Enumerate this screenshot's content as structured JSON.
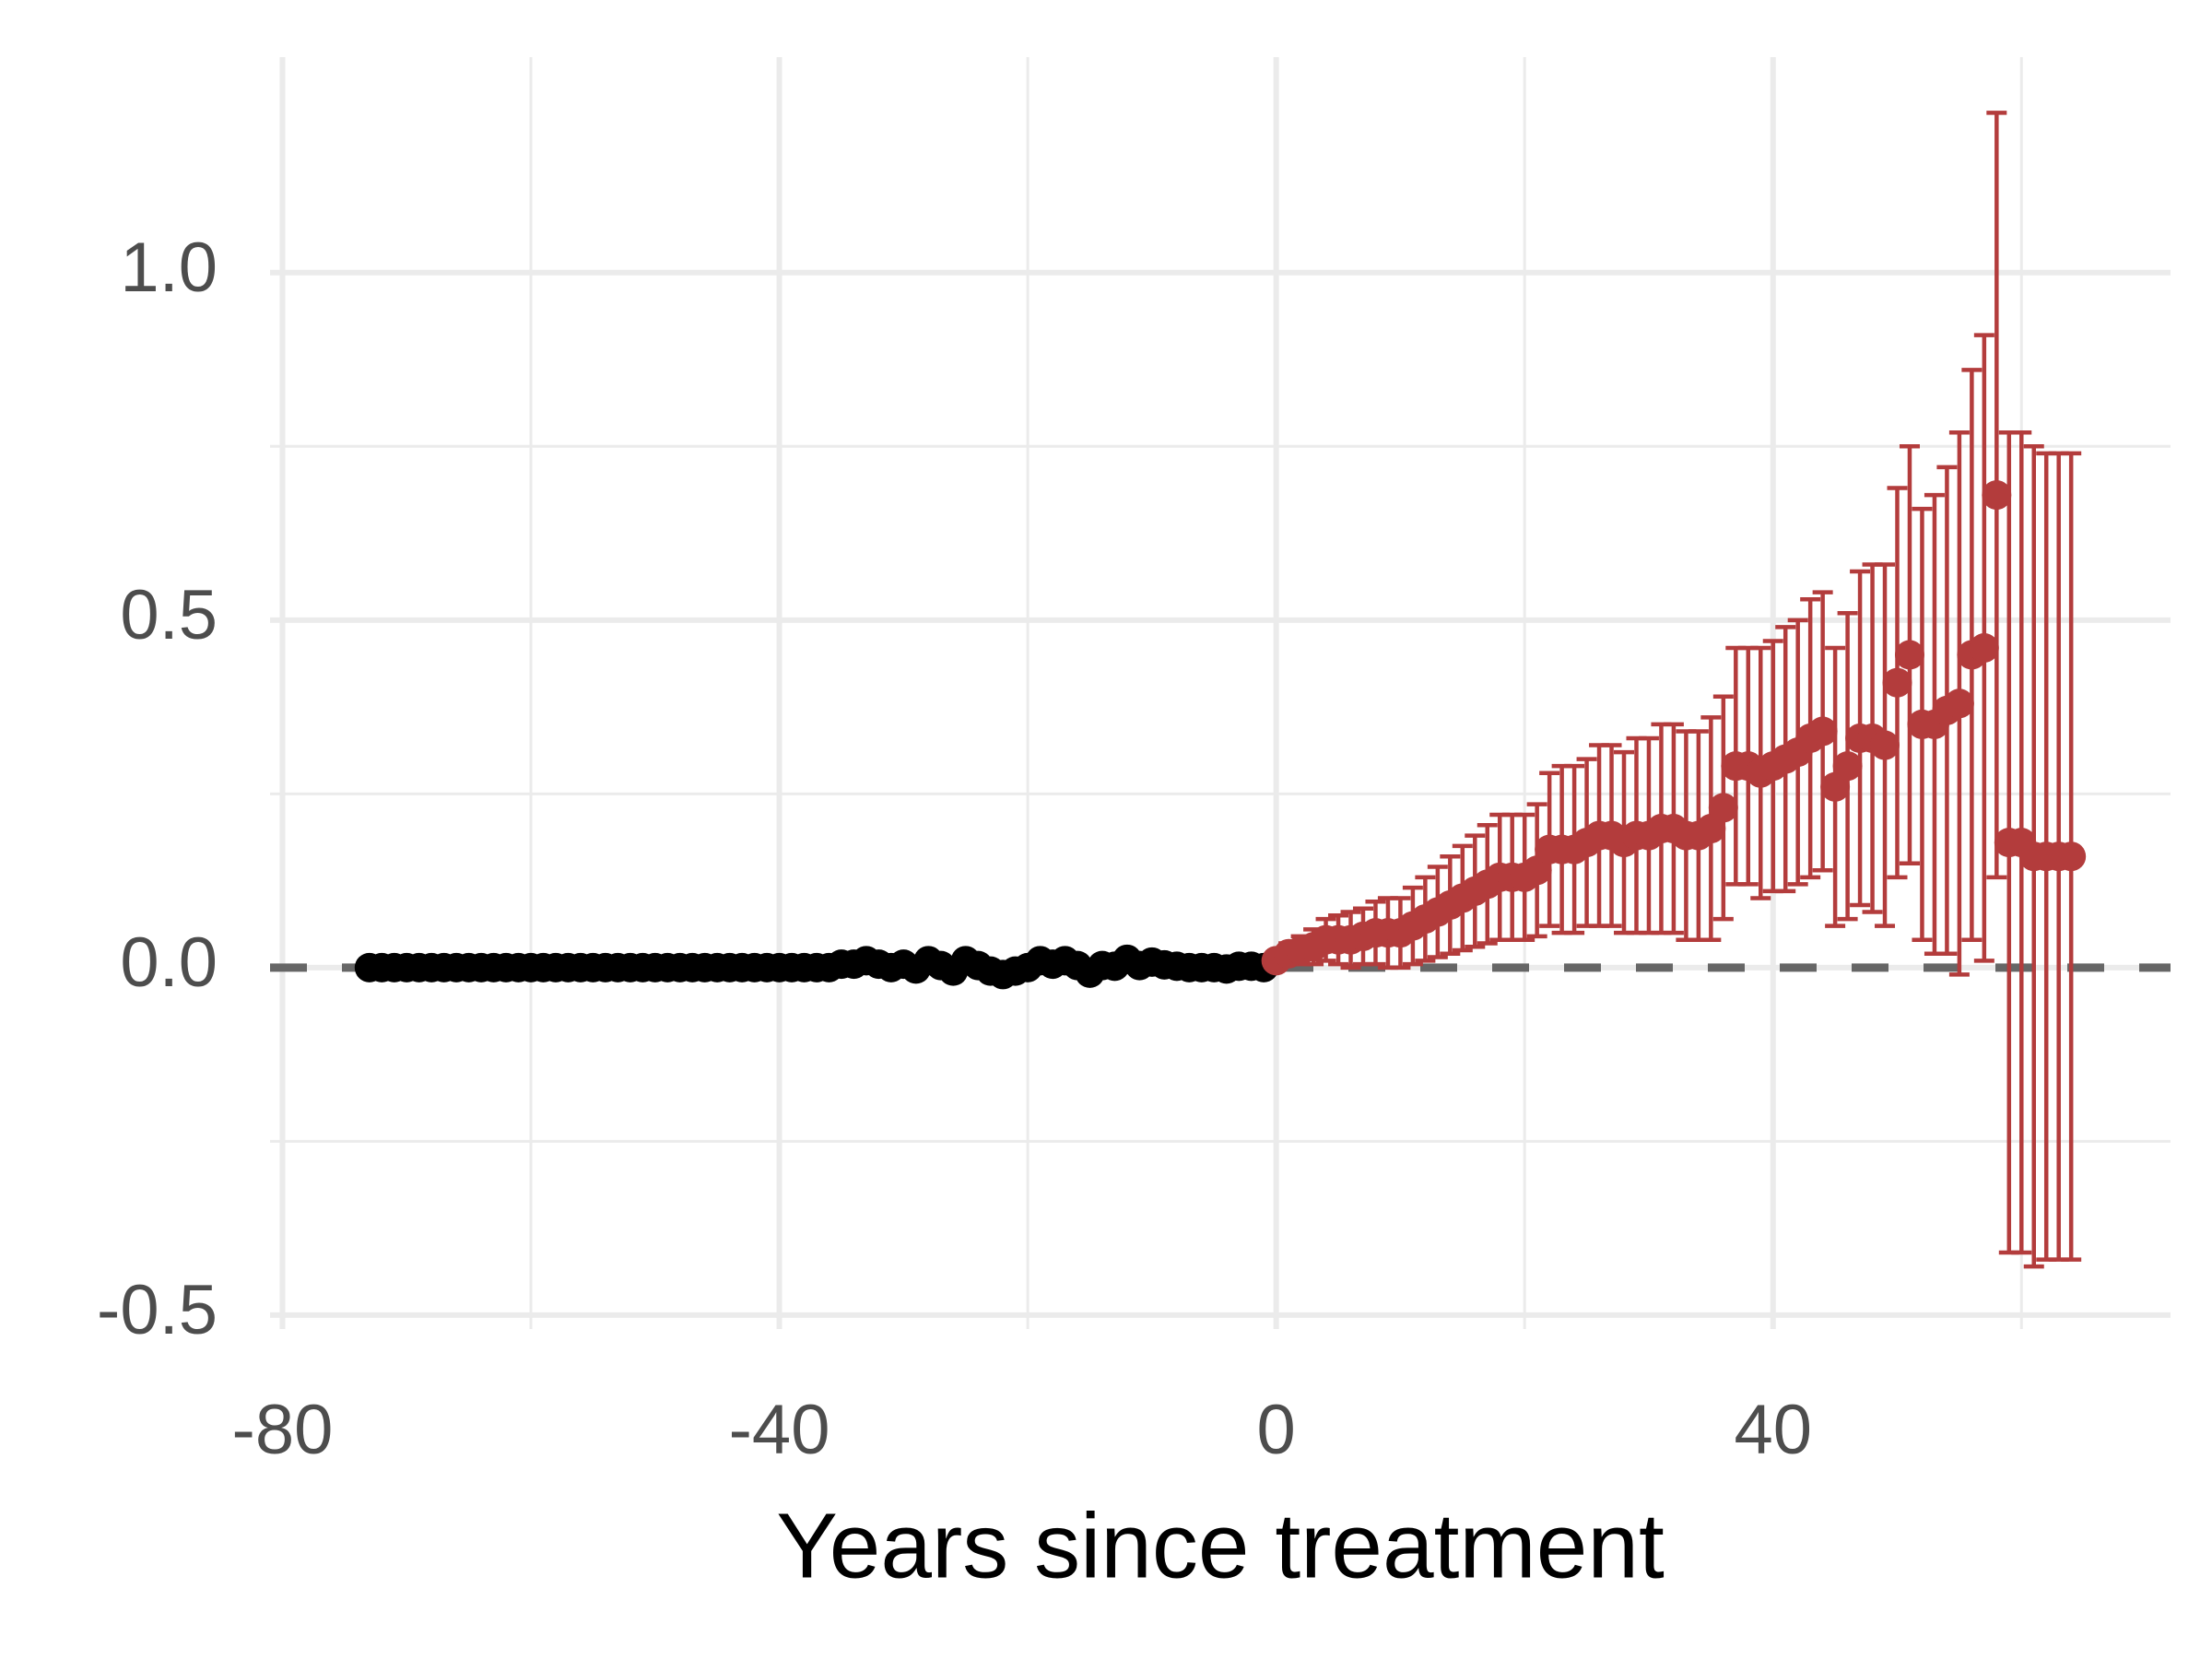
{
  "chart_data": {
    "type": "errorbar-scatter",
    "x_label": "Years since treatment",
    "xlim": [
      -81,
      72
    ],
    "ylim": [
      -0.52,
      1.31
    ],
    "xticks": [
      -80,
      -40,
      0,
      40
    ],
    "yticks": [
      -0.5,
      {
        "value": 0,
        "label": "0.0"
      },
      0.5,
      {
        "value": 1,
        "label": "1.0"
      }
    ],
    "minor_xticks": [
      -60,
      -20,
      20,
      60
    ],
    "minor_yticks": [
      -0.25,
      0.25,
      0.75
    ],
    "grid": true,
    "reference_line": 0,
    "series": [
      {
        "color": "#000000",
        "x": [
          -73,
          -72,
          -71,
          -70,
          -69,
          -68,
          -67,
          -66,
          -65,
          -64,
          -63,
          -62,
          -61,
          -60,
          -59,
          -58,
          -57,
          -56,
          -55,
          -54,
          -53,
          -52,
          -51,
          -50,
          -49,
          -48,
          -47,
          -46,
          -45,
          -44,
          -43,
          -42,
          -41,
          -40,
          -39,
          -38,
          -37,
          -36,
          -35,
          -34,
          -33,
          -32,
          -31,
          -30,
          -29,
          -28,
          -27,
          -26,
          -25,
          -24,
          -23,
          -22,
          -21,
          -20,
          -19,
          -18,
          -17,
          -16,
          -15,
          -14,
          -13,
          -12,
          -11,
          -10,
          -9,
          -8,
          -7,
          -6,
          -5,
          -4,
          -3,
          -2,
          -1
        ],
        "values": [
          0,
          0,
          0,
          0,
          0,
          0,
          0,
          0,
          0,
          0,
          0,
          0,
          0,
          0,
          0,
          0,
          0,
          0,
          0,
          0,
          0,
          0,
          0,
          0,
          0,
          0,
          0,
          0,
          0,
          0,
          0,
          0,
          0,
          0,
          0,
          0,
          0,
          0,
          0.005,
          0.005,
          0.01,
          0.005,
          0,
          0.005,
          -0.002,
          0.01,
          0.003,
          -0.005,
          0.01,
          0.003,
          -0.005,
          -0.01,
          -0.005,
          0,
          0.01,
          0.005,
          0.01,
          0.003,
          -0.008,
          0.003,
          0.002,
          0.012,
          0.003,
          0.008,
          0.004,
          0.002,
          0,
          0,
          0,
          -0.002,
          0.002,
          0.002,
          0
        ]
      },
      {
        "color": "#b33c3c",
        "x": [
          0,
          1,
          2,
          3,
          4,
          5,
          6,
          7,
          8,
          9,
          10,
          11,
          12,
          13,
          14,
          15,
          16,
          17,
          18,
          19,
          20,
          21,
          22,
          23,
          24,
          25,
          26,
          27,
          28,
          29,
          30,
          31,
          32,
          33,
          34,
          35,
          36,
          37,
          38,
          39,
          40,
          41,
          42,
          43,
          44,
          45,
          46,
          47,
          48,
          49,
          50,
          51,
          52,
          53,
          54,
          55,
          56,
          57,
          58,
          59,
          60,
          61,
          62,
          63,
          64
        ],
        "values": [
          0.01,
          0.02,
          0.025,
          0.03,
          0.04,
          0.04,
          0.04,
          0.045,
          0.05,
          0.05,
          0.05,
          0.06,
          0.07,
          0.08,
          0.09,
          0.1,
          0.11,
          0.12,
          0.13,
          0.13,
          0.13,
          0.14,
          0.17,
          0.17,
          0.17,
          0.18,
          0.19,
          0.19,
          0.18,
          0.19,
          0.19,
          0.2,
          0.2,
          0.19,
          0.19,
          0.2,
          0.23,
          0.29,
          0.29,
          0.28,
          0.29,
          0.3,
          0.31,
          0.33,
          0.34,
          0.26,
          0.29,
          0.33,
          0.33,
          0.32,
          0.41,
          0.45,
          0.35,
          0.35,
          0.37,
          0.38,
          0.45,
          0.46,
          0.68,
          0.18,
          0.18,
          0.16,
          0.16,
          0.16,
          0.16
        ],
        "error": [
          0.01,
          0.015,
          0.02,
          0.025,
          0.03,
          0.035,
          0.04,
          0.04,
          0.045,
          0.05,
          0.05,
          0.055,
          0.06,
          0.065,
          0.07,
          0.075,
          0.08,
          0.085,
          0.09,
          0.09,
          0.09,
          0.095,
          0.11,
          0.12,
          0.12,
          0.12,
          0.13,
          0.13,
          0.13,
          0.14,
          0.14,
          0.15,
          0.15,
          0.15,
          0.15,
          0.16,
          0.16,
          0.17,
          0.17,
          0.18,
          0.18,
          0.19,
          0.19,
          0.2,
          0.2,
          0.2,
          0.22,
          0.24,
          0.25,
          0.26,
          0.28,
          0.3,
          0.31,
          0.33,
          0.35,
          0.39,
          0.41,
          0.45,
          0.55,
          0.59,
          0.59,
          0.59,
          0.58,
          0.58,
          0.58
        ]
      }
    ]
  }
}
